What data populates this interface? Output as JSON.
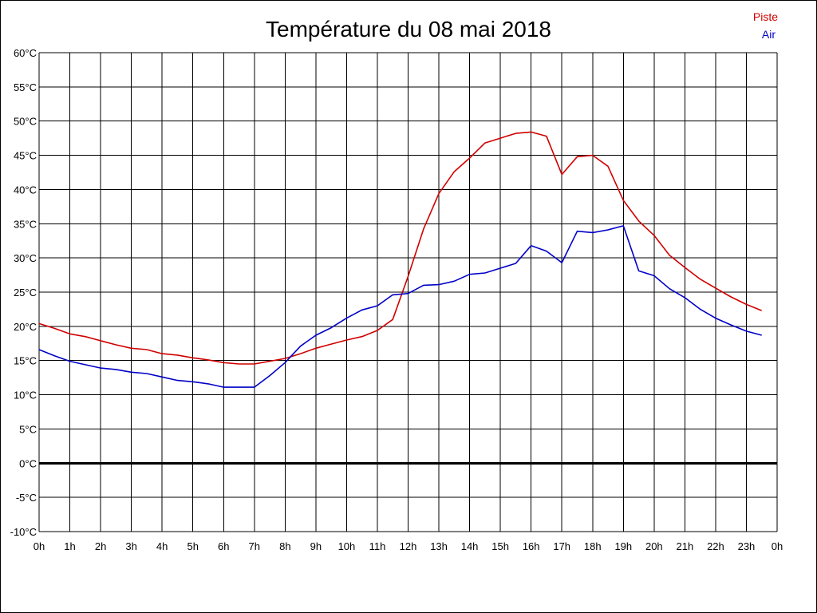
{
  "chart_data": {
    "type": "line",
    "title": "Température du 08 mai 2018",
    "xlabel": "",
    "ylabel": "",
    "ylim": [
      -10,
      60
    ],
    "xlim": [
      0,
      24
    ],
    "grid": true,
    "legend_position": "top-right",
    "x_tick_labels": [
      "0h",
      "1h",
      "2h",
      "3h",
      "4h",
      "5h",
      "6h",
      "7h",
      "8h",
      "9h",
      "10h",
      "11h",
      "12h",
      "13h",
      "14h",
      "15h",
      "16h",
      "17h",
      "18h",
      "19h",
      "20h",
      "21h",
      "22h",
      "23h",
      "0h"
    ],
    "y_ticks": [
      60,
      55,
      50,
      45,
      40,
      35,
      30,
      25,
      20,
      15,
      10,
      5,
      0,
      -5,
      -10
    ],
    "y_tick_labels": [
      "60°C",
      "55°C",
      "50°C",
      "45°C",
      "40°C",
      "35°C",
      "30°C",
      "25°C",
      "20°C",
      "15°C",
      "10°C",
      "5°C",
      "0°C",
      "-5°C",
      "-10°C"
    ],
    "zero_line": true,
    "series": [
      {
        "name": "Piste",
        "color": "#d00000",
        "x": [
          0,
          0.5,
          1,
          1.5,
          2,
          2.5,
          3,
          3.5,
          4,
          4.5,
          5,
          5.5,
          6,
          6.5,
          7,
          7.5,
          8,
          8.5,
          9,
          9.5,
          10,
          10.5,
          11,
          11.5,
          12,
          12.5,
          13,
          13.5,
          14,
          14.5,
          15,
          15.5,
          16,
          16.5,
          17,
          17.5,
          18,
          18.5,
          19,
          19.5,
          20,
          20.5,
          21,
          21.5,
          22,
          22.5,
          23,
          23.5
        ],
        "values": [
          20.4,
          19.7,
          18.9,
          18.5,
          17.9,
          17.3,
          16.8,
          16.6,
          16.0,
          15.8,
          15.4,
          15.1,
          14.7,
          14.5,
          14.5,
          14.9,
          15.3,
          16.0,
          16.8,
          17.4,
          18.0,
          18.5,
          19.4,
          21.0,
          27.3,
          34.2,
          39.4,
          42.6,
          44.6,
          46.8,
          47.5,
          48.2,
          48.4,
          47.8,
          42.2,
          44.8,
          45.0,
          43.4,
          38.4,
          35.4,
          33.3,
          30.4,
          28.6,
          26.9,
          25.6,
          24.3,
          23.2,
          22.3
        ]
      },
      {
        "name": "Air",
        "color": "#0000c8",
        "x": [
          0,
          0.5,
          1,
          1.5,
          2,
          2.5,
          3,
          3.5,
          4,
          4.5,
          5,
          5.5,
          6,
          6.5,
          7,
          7.5,
          8,
          8.5,
          9,
          9.5,
          10,
          10.5,
          11,
          11.5,
          12,
          12.5,
          13,
          13.5,
          14,
          14.5,
          15,
          15.5,
          16,
          16.5,
          17,
          17.5,
          18,
          18.5,
          19,
          19.5,
          20,
          20.5,
          21,
          21.5,
          22,
          22.5,
          23,
          23.5
        ],
        "values": [
          16.6,
          15.7,
          14.9,
          14.4,
          13.9,
          13.7,
          13.3,
          13.1,
          12.6,
          12.1,
          11.9,
          11.6,
          11.1,
          11.1,
          11.1,
          12.8,
          14.7,
          17.1,
          18.7,
          19.8,
          21.2,
          22.4,
          23.0,
          24.6,
          24.8,
          26.0,
          26.1,
          26.6,
          27.6,
          27.8,
          28.5,
          29.2,
          31.8,
          31.0,
          29.3,
          33.9,
          33.7,
          34.1,
          34.7,
          28.1,
          27.4,
          25.5,
          24.2,
          22.5,
          21.2,
          20.2,
          19.3,
          18.7
        ]
      }
    ]
  }
}
